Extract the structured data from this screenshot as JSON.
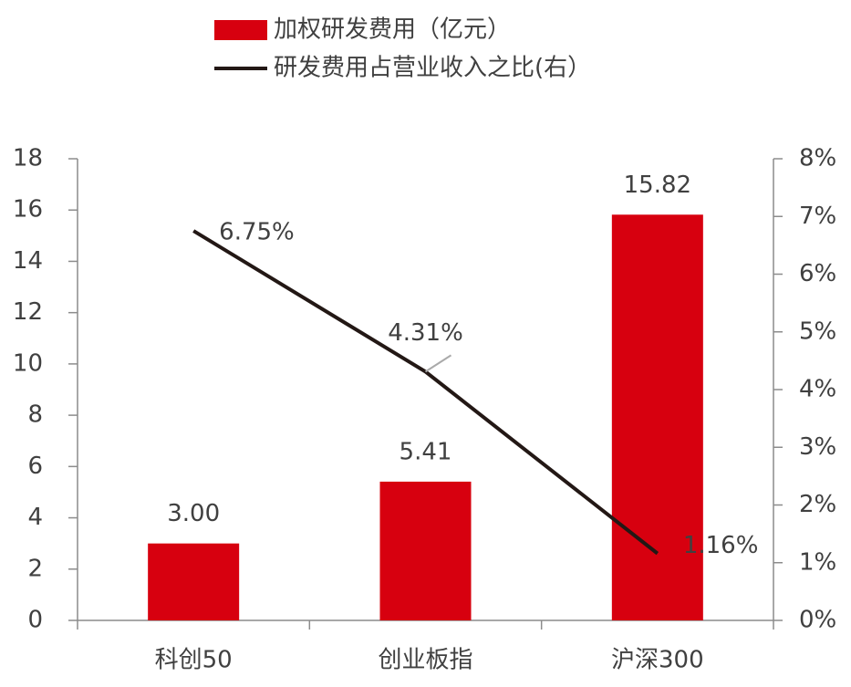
{
  "chart_data": {
    "type": "bar-line",
    "categories": [
      "科创50",
      "创业板指",
      "沪深300"
    ],
    "series": [
      {
        "name": "加权研发费用（亿元）",
        "type": "bar",
        "color": "#d7000f",
        "values": [
          3.0,
          5.41,
          15.82
        ],
        "value_labels": [
          "3.00",
          "5.41",
          "15.82"
        ]
      },
      {
        "name": "研发费用占营业收入之比(右）",
        "type": "line",
        "axis": "y2",
        "color": "#231815",
        "values": [
          6.75,
          4.31,
          1.16
        ],
        "value_labels": [
          "6.75%",
          "4.31%",
          "1.16%"
        ]
      }
    ],
    "ylim": [
      0,
      18
    ],
    "yticks": [
      0,
      2,
      4,
      6,
      8,
      10,
      12,
      14,
      16,
      18
    ],
    "y2lim": [
      0,
      8
    ],
    "y2ticks": [
      {
        "value": 0,
        "label": "0%"
      },
      {
        "value": 1,
        "label": "1%"
      },
      {
        "value": 2,
        "label": "2%"
      },
      {
        "value": 3,
        "label": "3%"
      },
      {
        "value": 4,
        "label": "4%"
      },
      {
        "value": 5,
        "label": "5%"
      },
      {
        "value": 6,
        "label": "6%"
      },
      {
        "value": 7,
        "label": "7%"
      },
      {
        "value": 8,
        "label": "8%"
      }
    ],
    "grid": false
  }
}
